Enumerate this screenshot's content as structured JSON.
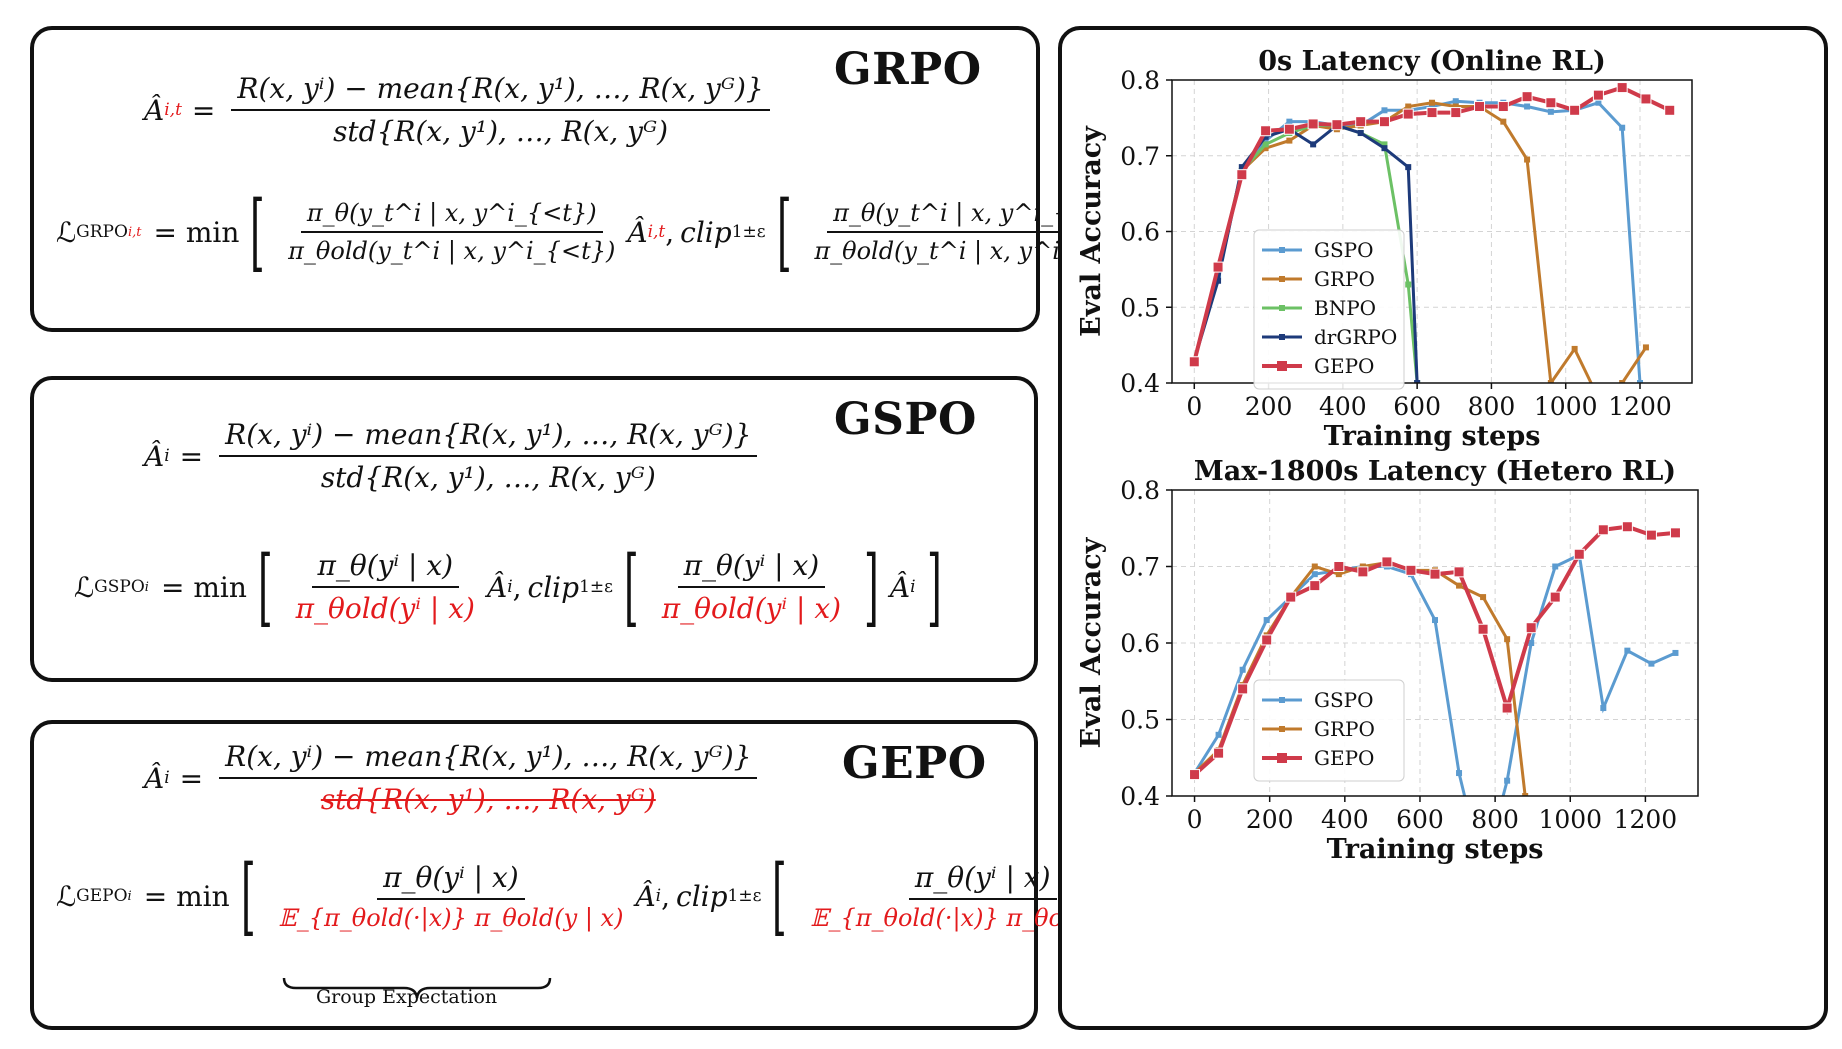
{
  "panels": {
    "grpo": {
      "title": "GRPO",
      "adv_lhs": "Â",
      "adv_sub": "i,t",
      "adv_num": "R(x, yⁱ) − mean{R(x, y¹), …, R(x, yᴳ)}",
      "adv_den": "std{R(x, y¹), …, R(x, yᴳ)",
      "loss_lhs": "ℒ",
      "loss_sub": "GRPO",
      "loss_sub2": "i,t",
      "min_text": "= min",
      "ratio_num": "π_θ(y_t^i | x, y^i_{<t})",
      "ratio_den": "π_θold(y_t^i | x, y^i_{<t})",
      "clip_text": "clip",
      "clip_sub": "1±ε",
      "adv_term": "Â",
      "adv_term_sub": "i,t"
    },
    "gspo": {
      "title": "GSPO",
      "adv_lhs": "Â",
      "adv_sub": "i",
      "adv_num": "R(x, yⁱ) − mean{R(x, y¹), …, R(x, yᴳ)}",
      "adv_den": "std{R(x, y¹), …, R(x, yᴳ)",
      "loss_lhs": "ℒ",
      "loss_sub": "GSPO",
      "loss_sub2": "i",
      "min_text": "= min",
      "ratio_num": "π_θ(yⁱ | x)",
      "ratio_den": "π_θold(yⁱ | x)",
      "clip_text": "clip",
      "clip_sub": "1±ε",
      "adv_term": "Â",
      "adv_term_sub": "i"
    },
    "gepo": {
      "title": "GEPO",
      "adv_lhs": "Â",
      "adv_sub": "i",
      "adv_num": "R(x, yⁱ) − mean{R(x, y¹), …, R(x, yᴳ)}",
      "adv_den": "std{R(x, y¹), …, R(x, yᴳ)",
      "loss_lhs": "ℒ",
      "loss_sub": "GEPO",
      "loss_sub2": "i",
      "min_text": "= min",
      "ratio_num": "π_θ(yⁱ | x)",
      "ratio_den": "𝔼_{π_θold(·|x)} π_θold(y | x)",
      "clip_text": "clip",
      "clip_sub": "1±ε",
      "adv_term": "Â",
      "adv_term_sub": "i",
      "brace_label": "Group Expectation"
    }
  },
  "colors": {
    "GSPO": "#5b9bd0",
    "GRPO": "#c07a2c",
    "BNPO": "#6cc165",
    "drGRPO": "#1d3a7a",
    "GEPO": "#cf3a4a",
    "red": "#e31a1c"
  },
  "chart_data": [
    {
      "type": "line",
      "title": "0s Latency (Online RL)",
      "xlabel": "Training steps",
      "ylabel": "Eval Accuracy",
      "xlim": [
        -60,
        1340
      ],
      "ylim": [
        0.4,
        0.8
      ],
      "xticks": [
        0,
        200,
        400,
        600,
        800,
        1000,
        1200
      ],
      "yticks": [
        0.4,
        0.5,
        0.6,
        0.7,
        0.8
      ],
      "grid": true,
      "legend": "center-left",
      "series": [
        {
          "name": "GSPO",
          "x": [
            0,
            64,
            128,
            192,
            256,
            320,
            384,
            448,
            512,
            576,
            640,
            704,
            768,
            832,
            896,
            960,
            1024,
            1088,
            1152,
            1200
          ],
          "y": [
            0.43,
            0.54,
            0.68,
            0.72,
            0.745,
            0.745,
            0.74,
            0.74,
            0.76,
            0.76,
            0.765,
            0.772,
            0.77,
            0.77,
            0.765,
            0.758,
            0.76,
            0.77,
            0.737,
            0.4
          ]
        },
        {
          "name": "GRPO",
          "x": [
            0,
            64,
            128,
            192,
            256,
            320,
            384,
            448,
            512,
            576,
            640,
            704,
            768,
            832,
            896,
            960,
            1024,
            1088,
            1152,
            1216
          ],
          "y": [
            0.43,
            0.55,
            0.68,
            0.71,
            0.72,
            0.74,
            0.735,
            0.74,
            0.745,
            0.765,
            0.77,
            0.765,
            0.765,
            0.745,
            0.695,
            0.4,
            0.445,
            0.38,
            0.4,
            0.447
          ]
        },
        {
          "name": "BNPO",
          "x": [
            0,
            64,
            128,
            192,
            256,
            320,
            384,
            448,
            512,
            576,
            600
          ],
          "y": [
            0.43,
            0.55,
            0.68,
            0.715,
            0.73,
            0.74,
            0.74,
            0.73,
            0.715,
            0.53,
            0.4
          ]
        },
        {
          "name": "drGRPO",
          "x": [
            0,
            64,
            128,
            192,
            256,
            320,
            384,
            448,
            512,
            576,
            600
          ],
          "y": [
            0.43,
            0.535,
            0.685,
            0.725,
            0.735,
            0.715,
            0.74,
            0.73,
            0.71,
            0.685,
            0.4
          ]
        },
        {
          "name": "GEPO",
          "x": [
            0,
            64,
            128,
            192,
            256,
            320,
            384,
            448,
            512,
            576,
            640,
            704,
            768,
            832,
            896,
            960,
            1024,
            1088,
            1152,
            1216,
            1280
          ],
          "y": [
            0.428,
            0.553,
            0.675,
            0.733,
            0.735,
            0.742,
            0.741,
            0.745,
            0.745,
            0.755,
            0.757,
            0.757,
            0.765,
            0.765,
            0.778,
            0.77,
            0.76,
            0.78,
            0.79,
            0.775,
            0.76
          ]
        }
      ]
    },
    {
      "type": "line",
      "title": "Max-1800s Latency (Hetero RL)",
      "xlabel": "Training steps",
      "ylabel": "Eval Accuracy",
      "xlim": [
        -60,
        1340
      ],
      "ylim": [
        0.4,
        0.8
      ],
      "xticks": [
        0,
        200,
        400,
        600,
        800,
        1000,
        1200
      ],
      "yticks": [
        0.4,
        0.5,
        0.6,
        0.7,
        0.8
      ],
      "grid": true,
      "legend": "center-left",
      "series": [
        {
          "name": "GSPO",
          "x": [
            0,
            64,
            128,
            192,
            256,
            320,
            384,
            448,
            512,
            576,
            640,
            704,
            768,
            832,
            896,
            960,
            1024,
            1088,
            1152,
            1216,
            1280
          ],
          "y": [
            0.43,
            0.48,
            0.565,
            0.63,
            0.66,
            0.69,
            0.695,
            0.7,
            0.7,
            0.69,
            0.63,
            0.43,
            0.3,
            0.42,
            0.6,
            0.7,
            0.715,
            0.515,
            0.59,
            0.573,
            0.587
          ]
        },
        {
          "name": "GRPO",
          "x": [
            0,
            64,
            128,
            192,
            256,
            320,
            384,
            448,
            512,
            576,
            640,
            704,
            768,
            832,
            880
          ],
          "y": [
            0.43,
            0.46,
            0.545,
            0.61,
            0.66,
            0.7,
            0.69,
            0.7,
            0.705,
            0.695,
            0.695,
            0.675,
            0.66,
            0.605,
            0.4
          ]
        },
        {
          "name": "GEPO",
          "x": [
            0,
            64,
            128,
            192,
            256,
            320,
            384,
            448,
            512,
            576,
            640,
            704,
            768,
            832,
            896,
            960,
            1024,
            1088,
            1152,
            1216,
            1280
          ],
          "y": [
            0.428,
            0.456,
            0.54,
            0.604,
            0.66,
            0.675,
            0.7,
            0.693,
            0.706,
            0.695,
            0.69,
            0.693,
            0.618,
            0.515,
            0.62,
            0.66,
            0.716,
            0.748,
            0.752,
            0.741,
            0.744
          ]
        }
      ]
    }
  ]
}
